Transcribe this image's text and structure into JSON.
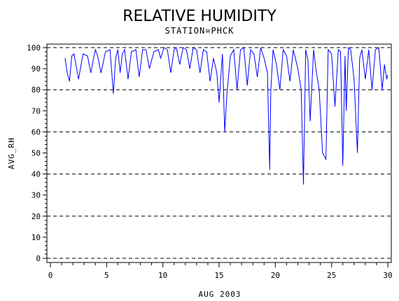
{
  "chart_data": {
    "type": "line",
    "title": "RELATIVE HUMIDITY",
    "subtitle": "STATION=PHCK",
    "xlabel": "AUG 2003",
    "ylabel": "AVG_RH",
    "xlim": [
      0,
      30
    ],
    "ylim": [
      0,
      100
    ],
    "xticks": [
      0,
      5,
      10,
      15,
      20,
      25,
      30
    ],
    "yticks": [
      0,
      10,
      20,
      30,
      40,
      50,
      60,
      70,
      80,
      90,
      100
    ],
    "grid": "horizontal dashed at 0, 20, 40, 60, 80, 100",
    "series": [
      {
        "color": "#0000ff",
        "x": [
          1.3,
          1.5,
          1.7,
          1.9,
          2.1,
          2.5,
          2.9,
          3.3,
          3.6,
          3.8,
          4.0,
          4.2,
          4.5,
          4.9,
          5.3,
          5.6,
          5.8,
          6.0,
          6.2,
          6.4,
          6.6,
          6.9,
          7.2,
          7.6,
          7.9,
          8.2,
          8.5,
          8.8,
          9.2,
          9.6,
          9.8,
          10.1,
          10.4,
          10.7,
          11.0,
          11.2,
          11.5,
          11.8,
          12.1,
          12.4,
          12.7,
          13.0,
          13.3,
          13.6,
          13.9,
          14.2,
          14.5,
          14.8,
          15.0,
          15.3,
          15.5,
          15.7,
          16.0,
          16.3,
          16.6,
          16.9,
          17.2,
          17.5,
          17.8,
          18.1,
          18.4,
          18.7,
          19.0,
          19.3,
          19.5,
          19.6,
          19.8,
          20.1,
          20.4,
          20.7,
          21.0,
          21.3,
          21.6,
          22.0,
          22.3,
          22.5,
          22.7,
          22.9,
          23.1,
          23.4,
          23.6,
          23.9,
          24.2,
          24.5,
          24.7,
          25.0,
          25.3,
          25.6,
          25.8,
          26.0,
          26.2,
          26.3,
          26.5,
          26.7,
          27.0,
          27.3,
          27.5,
          27.7,
          28.0,
          28.3,
          28.6,
          28.9,
          29.2,
          29.5,
          29.7,
          29.9,
          30.0
        ],
        "values": [
          95,
          88,
          84,
          96,
          97,
          85,
          97,
          96,
          88,
          94,
          99,
          96,
          88,
          98,
          99,
          78,
          95,
          99,
          88,
          97,
          99,
          85,
          98,
          99,
          86,
          99,
          99,
          90,
          98,
          99,
          95,
          100,
          99,
          88,
          99,
          100,
          92,
          100,
          99,
          90,
          100,
          99,
          88,
          99,
          98,
          84,
          95,
          88,
          74,
          97,
          60,
          78,
          96,
          99,
          80,
          99,
          100,
          82,
          99,
          97,
          86,
          100,
          95,
          88,
          42,
          80,
          99,
          92,
          80,
          99,
          96,
          84,
          99,
          90,
          80,
          35,
          99,
          94,
          65,
          99,
          90,
          80,
          50,
          47,
          99,
          97,
          72,
          99,
          98,
          44,
          96,
          70,
          100,
          99,
          85,
          50,
          95,
          99,
          85,
          99,
          80,
          99,
          100,
          80,
          92,
          85,
          87
        ]
      }
    ]
  }
}
